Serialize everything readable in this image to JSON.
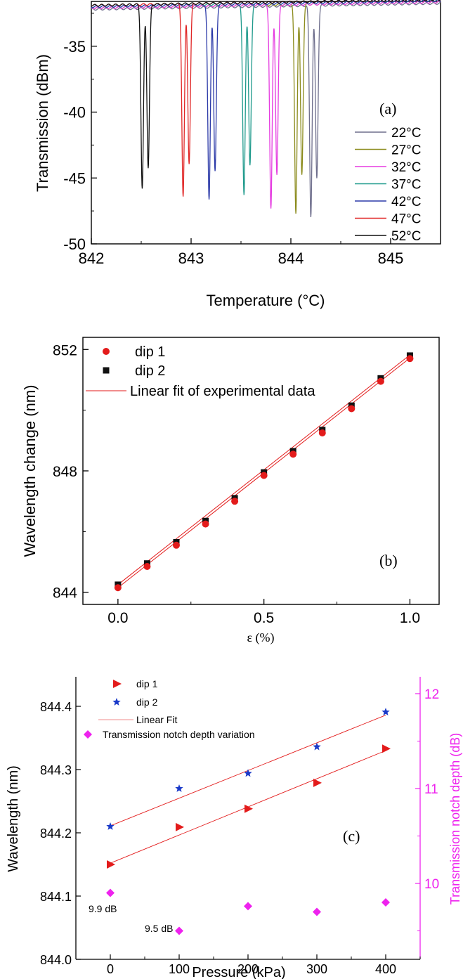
{
  "chart_data": [
    {
      "panel": "(a)",
      "type": "line",
      "xlabel": "Temperature (°C)",
      "ylabel": "Transmission (dBm)",
      "xlim": [
        842,
        845.5
      ],
      "ylim": [
        -50,
        -31.6
      ],
      "xticks": [
        "842",
        "843",
        "844",
        "845"
      ],
      "yticks": [
        "-35",
        "-40",
        "-45",
        "-50"
      ],
      "grid": false,
      "legend_position": "right",
      "series": [
        {
          "name": "22°C",
          "color": "#6e6e8c",
          "baseline": -32.2,
          "dips": [
            {
              "x": 844.2,
              "y": -48.2
            },
            {
              "x": 844.26,
              "y": -45.3
            }
          ]
        },
        {
          "name": "27°C",
          "color": "#8c8c1e",
          "baseline": -32.1,
          "dips": [
            {
              "x": 844.05,
              "y": -47.9
            },
            {
              "x": 844.11,
              "y": -45.0
            }
          ]
        },
        {
          "name": "32°C",
          "color": "#e53be0",
          "baseline": -32.1,
          "dips": [
            {
              "x": 843.8,
              "y": -47.6
            },
            {
              "x": 843.86,
              "y": -45.0
            }
          ]
        },
        {
          "name": "37°C",
          "color": "#1f9a8c",
          "baseline": -32.0,
          "dips": [
            {
              "x": 843.53,
              "y": -46.5
            },
            {
              "x": 843.59,
              "y": -44.3
            }
          ]
        },
        {
          "name": "42°C",
          "color": "#2c3aa8",
          "baseline": -32.0,
          "dips": [
            {
              "x": 843.18,
              "y": -46.8
            },
            {
              "x": 843.24,
              "y": -44.7
            }
          ]
        },
        {
          "name": "47°C",
          "color": "#e02626",
          "baseline": -31.9,
          "dips": [
            {
              "x": 842.92,
              "y": -46.5
            },
            {
              "x": 842.98,
              "y": -44.0
            }
          ]
        },
        {
          "name": "52°C",
          "color": "#111111",
          "baseline": -31.9,
          "dips": [
            {
              "x": 842.51,
              "y": -45.9
            },
            {
              "x": 842.57,
              "y": -44.3
            }
          ]
        }
      ]
    },
    {
      "panel": "(b)",
      "type": "scatter",
      "xlabel": "ε (%)",
      "ylabel": "Wavelength change (nm)",
      "xlim": [
        -0.12,
        1.1
      ],
      "ylim": [
        843.6,
        852.4
      ],
      "xticks": [
        "0.0",
        "0.5",
        "1.0"
      ],
      "yticks": [
        "844",
        "848",
        "852"
      ],
      "grid": false,
      "legend_position": "top-left",
      "series": [
        {
          "name": "dip 1",
          "marker": "circle",
          "color": "#e31b1b",
          "x": [
            0,
            0.1,
            0.2,
            0.3,
            0.4,
            0.5,
            0.6,
            0.7,
            0.8,
            0.9,
            1.0
          ],
          "y": [
            844.15,
            844.85,
            845.55,
            846.25,
            847.0,
            847.85,
            848.55,
            849.25,
            850.05,
            850.95,
            851.7
          ]
        },
        {
          "name": "dip 2",
          "marker": "square",
          "color": "#111111",
          "x": [
            0,
            0.1,
            0.2,
            0.3,
            0.4,
            0.5,
            0.6,
            0.7,
            0.8,
            0.9,
            1.0
          ],
          "y": [
            844.25,
            844.95,
            845.65,
            846.35,
            847.1,
            847.95,
            848.65,
            849.35,
            850.15,
            851.05,
            851.8
          ]
        },
        {
          "name": "Linear fit of experimental data",
          "marker": "line",
          "color": "#e31b1b",
          "fits": [
            {
              "x": [
                0,
                1.0
              ],
              "y": [
                844.15,
                851.72
              ]
            },
            {
              "x": [
                0,
                1.0
              ],
              "y": [
                844.25,
                851.82
              ]
            }
          ]
        }
      ]
    },
    {
      "panel": "(c)",
      "type": "scatter",
      "xlabel": "Pressure (kPa)",
      "ylabel": "Wavelength (nm)",
      "y2label": "Transmission notch depth (dB)",
      "xlim": [
        -50,
        450
      ],
      "ylim": [
        844.0,
        844.45
      ],
      "y2lim": [
        9.2,
        12.0
      ],
      "xticks": [
        "0",
        "100",
        "200",
        "300",
        "400"
      ],
      "yticks": [
        "844.0",
        "844.1",
        "844.2",
        "844.3",
        "844.4"
      ],
      "y2ticks": [
        "10",
        "11",
        "12"
      ],
      "grid": false,
      "legend_position": "top-left",
      "annotations": [
        "9.9 dB",
        "9.5 dB"
      ],
      "series": [
        {
          "name": "dip 1",
          "marker": "triangle-right",
          "color": "#e31b1b",
          "axis": "left",
          "x": [
            0,
            100,
            200,
            300,
            400
          ],
          "y": [
            844.15,
            844.209,
            844.238,
            844.279,
            844.333
          ]
        },
        {
          "name": "dip 2",
          "marker": "star",
          "color": "#1a3ac9",
          "axis": "left",
          "x": [
            0,
            100,
            200,
            300,
            400
          ],
          "y": [
            844.21,
            844.27,
            844.294,
            844.336,
            844.391
          ]
        },
        {
          "name": "Linear Fit",
          "marker": "line",
          "color": "#e31b1b",
          "axis": "left",
          "fits": [
            {
              "x": [
                0,
                400
              ],
              "y": [
                844.152,
                844.33
              ]
            },
            {
              "x": [
                0,
                400
              ],
              "y": [
                844.211,
                844.386
              ]
            }
          ]
        },
        {
          "name": "Transmission notch depth variation",
          "marker": "diamond",
          "color": "#ee22ee",
          "axis": "right",
          "x": [
            0,
            100,
            200,
            300,
            400
          ],
          "y": [
            9.9,
            9.5,
            9.76,
            9.7,
            9.8
          ]
        }
      ]
    }
  ]
}
